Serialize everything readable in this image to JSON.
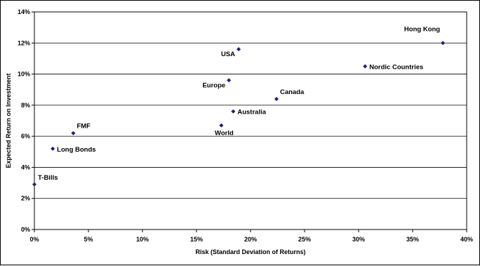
{
  "chart_data": {
    "type": "scatter",
    "title": "",
    "xlabel": "Risk (Standard Deviation of Returns)",
    "ylabel": "Expected Return on Investment",
    "xlim": [
      0,
      0.4
    ],
    "ylim": [
      0,
      0.14
    ],
    "x_ticks": [
      "0%",
      "5%",
      "10%",
      "15%",
      "20%",
      "25%",
      "30%",
      "35%",
      "40%"
    ],
    "y_ticks": [
      "0%",
      "2%",
      "4%",
      "6%",
      "8%",
      "10%",
      "12%",
      "14%"
    ],
    "grid": "horizontal",
    "marker_color": "#1f1f7a",
    "points": [
      {
        "label": "T-Bills",
        "x": 0.0,
        "y": 0.029,
        "label_pos": "above-right"
      },
      {
        "label": "Long Bonds",
        "x": 0.017,
        "y": 0.052,
        "label_pos": "right"
      },
      {
        "label": "FMF",
        "x": 0.036,
        "y": 0.062,
        "label_pos": "above-right"
      },
      {
        "label": "World",
        "x": 0.173,
        "y": 0.067,
        "label_pos": "below"
      },
      {
        "label": "Australia",
        "x": 0.184,
        "y": 0.076,
        "label_pos": "right"
      },
      {
        "label": "Europe",
        "x": 0.18,
        "y": 0.096,
        "label_pos": "below-left"
      },
      {
        "label": "USA",
        "x": 0.189,
        "y": 0.116,
        "label_pos": "below-left"
      },
      {
        "label": "Canada",
        "x": 0.224,
        "y": 0.084,
        "label_pos": "above-right"
      },
      {
        "label": "Nordic Countries",
        "x": 0.306,
        "y": 0.105,
        "label_pos": "right"
      },
      {
        "label": "Hong Kong",
        "x": 0.378,
        "y": 0.12,
        "label_pos": "above-left"
      }
    ]
  }
}
